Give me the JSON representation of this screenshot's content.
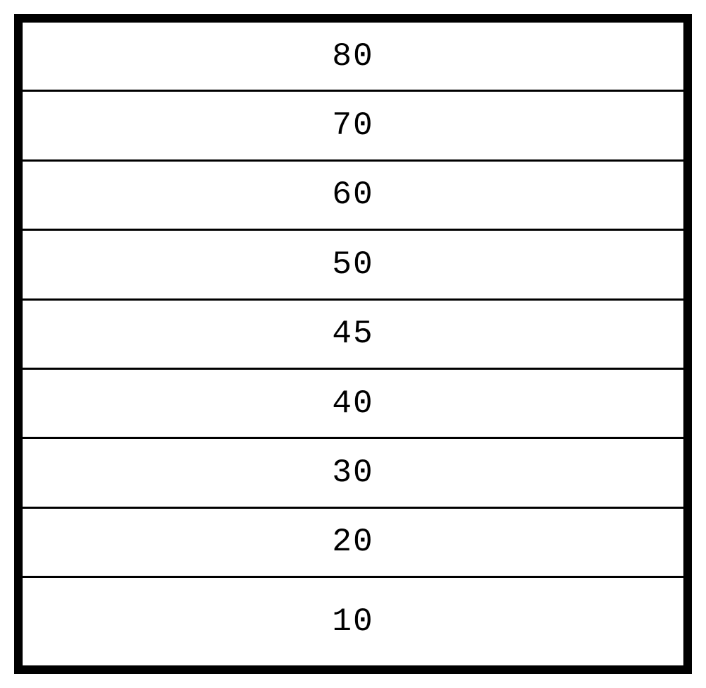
{
  "diagram": {
    "type": "layer_stack",
    "background_color": "#ffffff",
    "border_color": "#000000",
    "border_width_outer": 12,
    "border_width_inner": 3,
    "font_family": "Courier New, monospace",
    "font_size": 46,
    "font_color": "#000000",
    "letter_spacing": 2,
    "container_width": 960,
    "container_height": 935,
    "layers": [
      {
        "label": "80",
        "flex": 1
      },
      {
        "label": "70",
        "flex": 1
      },
      {
        "label": "60",
        "flex": 1
      },
      {
        "label": "50",
        "flex": 1
      },
      {
        "label": "45",
        "flex": 1
      },
      {
        "label": "40",
        "flex": 1
      },
      {
        "label": "30",
        "flex": 1
      },
      {
        "label": "20",
        "flex": 1
      },
      {
        "label": "10",
        "flex": 1.3
      }
    ]
  }
}
